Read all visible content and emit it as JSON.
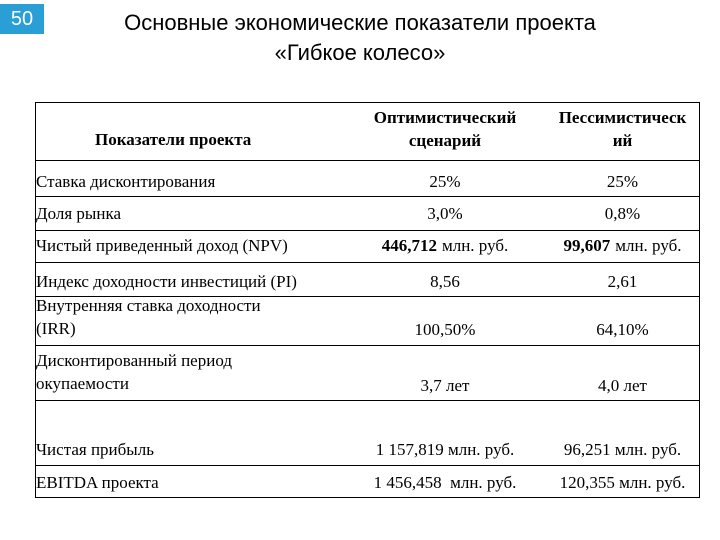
{
  "slide_number": "50",
  "title": [
    "Основные экономические показатели проекта",
    "«Гибкое колесо»"
  ],
  "table": {
    "header": [
      [
        "Показатели проекта"
      ],
      [
        "Оптимистический",
        "сценарий"
      ],
      [
        "Пессимистическ",
        "ий"
      ]
    ],
    "rows": [
      {
        "label": [
          "Ставка дисконтирования"
        ],
        "optimistic": "25%",
        "pessimistic": "25%"
      },
      {
        "label": [
          "Доля рынка"
        ],
        "optimistic": "3,0%",
        "pessimistic": "0,8%"
      },
      {
        "label": [
          "Чистый приведенный доход (NPV)"
        ],
        "optimistic": "446,712",
        "optimistic_unit": "млн. руб.",
        "pessimistic": "99,607",
        "pessimistic_unit": "млн. руб."
      },
      {
        "label": [
          "Индекс доходности инвестиций (PI)"
        ],
        "optimistic": "8,56",
        "pessimistic": "2,61"
      },
      {
        "label": [
          "Внутренняя ставка доходности",
          "(IRR)"
        ],
        "optimistic": "100,50%",
        "pessimistic": "64,10%"
      },
      {
        "label": [
          "Дисконтированный период",
          "окупаемости"
        ],
        "optimistic": "3,7 лет",
        "pessimistic": "4,0 лет"
      },
      {
        "label": [
          "Чистая прибыль"
        ],
        "optimistic": "1 157,819 млн. руб.",
        "pessimistic": "96,251 млн. руб."
      },
      {
        "label": [
          "EBITDA проекта"
        ],
        "optimistic": "1 456,458  млн. руб.",
        "pessimistic": "120,355 млн. руб."
      }
    ]
  }
}
